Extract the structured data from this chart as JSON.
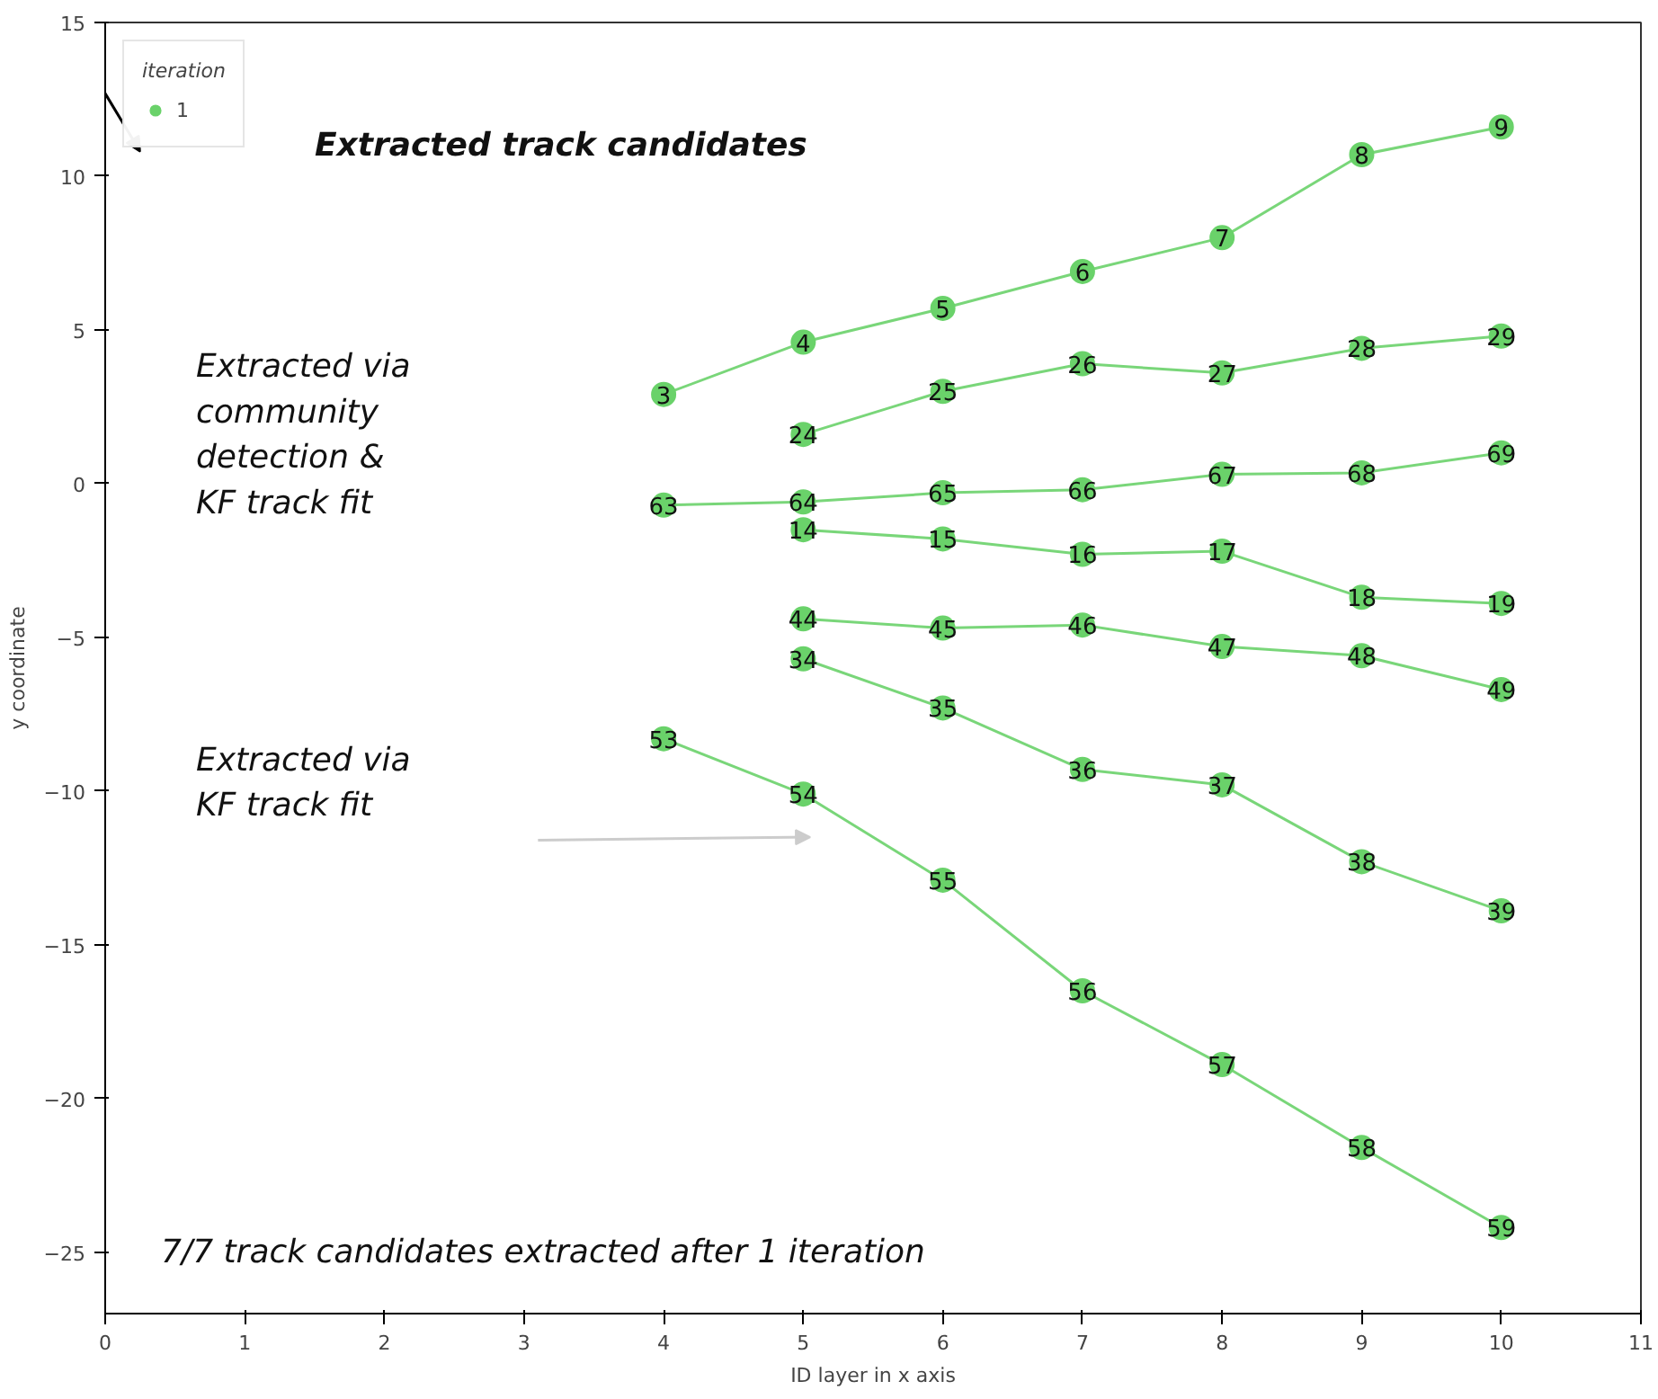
{
  "chart_data": {
    "type": "line",
    "xlabel": "ID layer in x axis",
    "ylabel": "y coordinate",
    "legend_title": "iteration",
    "legend": "top left",
    "marker": "circle",
    "line_style": "solid",
    "grid": false,
    "xlim": [
      0,
      11
    ],
    "xticks": [
      0,
      1,
      2,
      3,
      4,
      5,
      6,
      7,
      8,
      9,
      10,
      11
    ],
    "ylim": [
      -27,
      15
    ],
    "yticks": [
      -25,
      -20,
      -15,
      -10,
      -5,
      0,
      5,
      10,
      15
    ],
    "series": [
      {
        "name": "1",
        "color": "#6ad26a",
        "x": [
          4,
          5,
          6,
          7,
          8,
          9,
          10,
          null,
          5,
          6,
          7,
          8,
          9,
          10,
          null,
          4,
          5,
          6,
          7,
          8,
          9,
          10,
          null,
          5,
          6,
          7,
          8,
          9,
          10,
          null,
          5,
          6,
          7,
          8,
          9,
          10,
          null,
          5,
          6,
          7,
          8,
          9,
          10,
          null,
          4,
          5,
          6,
          7,
          8,
          9,
          10
        ],
        "values": [
          2.9,
          4.6,
          5.7,
          6.9,
          8.0,
          10.7,
          11.6,
          null,
          1.6,
          3.0,
          3.9,
          3.6,
          4.4,
          4.8,
          null,
          -0.7,
          -0.6,
          -0.3,
          -0.2,
          0.3,
          0.35,
          1.0,
          null,
          -1.5,
          -1.8,
          -2.3,
          -2.2,
          -3.7,
          -3.9,
          null,
          -4.4,
          -4.7,
          -4.6,
          -5.3,
          -5.6,
          -6.7,
          null,
          -5.7,
          -7.3,
          -9.3,
          -9.8,
          -12.3,
          -13.9,
          null,
          -8.3,
          -10.1,
          -12.9,
          -16.5,
          -18.9,
          -21.6,
          -24.2
        ]
      }
    ],
    "annotations": [
      "Extracted track candidates",
      "Extracted via\ncommunity\ndetection &\nKF track fit",
      "Extracted via\nKF track fit",
      "7/7 track candidates extracted after 1 iteration",
      {
        "text": "3",
        "x": 4,
        "y": 2.9
      },
      {
        "text": "4",
        "x": 5,
        "y": 4.6
      },
      {
        "text": "5",
        "x": 6,
        "y": 5.7
      },
      {
        "text": "6",
        "x": 7,
        "y": 6.9
      },
      {
        "text": "7",
        "x": 8,
        "y": 8.0
      },
      {
        "text": "8",
        "x": 9,
        "y": 10.7
      },
      {
        "text": "9",
        "x": 10,
        "y": 11.6
      },
      {
        "text": "24",
        "x": 5,
        "y": 1.6
      },
      {
        "text": "25",
        "x": 6,
        "y": 3.0
      },
      {
        "text": "26",
        "x": 7,
        "y": 3.9
      },
      {
        "text": "27",
        "x": 8,
        "y": 3.6
      },
      {
        "text": "28",
        "x": 9,
        "y": 4.4
      },
      {
        "text": "29",
        "x": 10,
        "y": 4.8
      },
      {
        "text": "63",
        "x": 4,
        "y": -0.7
      },
      {
        "text": "64",
        "x": 5,
        "y": -0.6
      },
      {
        "text": "65",
        "x": 6,
        "y": -0.3
      },
      {
        "text": "66",
        "x": 7,
        "y": -0.2
      },
      {
        "text": "67",
        "x": 8,
        "y": 0.3
      },
      {
        "text": "68",
        "x": 9,
        "y": 0.35
      },
      {
        "text": "69",
        "x": 10,
        "y": 1.0
      },
      {
        "text": "14",
        "x": 5,
        "y": -1.5
      },
      {
        "text": "15",
        "x": 6,
        "y": -1.8
      },
      {
        "text": "16",
        "x": 7,
        "y": -2.3
      },
      {
        "text": "17",
        "x": 8,
        "y": -2.2
      },
      {
        "text": "18",
        "x": 9,
        "y": -3.7
      },
      {
        "text": "19",
        "x": 10,
        "y": -3.9
      },
      {
        "text": "44",
        "x": 5,
        "y": -4.4
      },
      {
        "text": "45",
        "x": 6,
        "y": -4.7
      },
      {
        "text": "46",
        "x": 7,
        "y": -4.6
      },
      {
        "text": "47",
        "x": 8,
        "y": -5.3
      },
      {
        "text": "48",
        "x": 9,
        "y": -5.6
      },
      {
        "text": "49",
        "x": 10,
        "y": -6.7
      },
      {
        "text": "34",
        "x": 5,
        "y": -5.7
      },
      {
        "text": "35",
        "x": 6,
        "y": -7.3
      },
      {
        "text": "36",
        "x": 7,
        "y": -9.3
      },
      {
        "text": "37",
        "x": 8,
        "y": -9.8
      },
      {
        "text": "38",
        "x": 9,
        "y": -12.3
      },
      {
        "text": "39",
        "x": 10,
        "y": -13.9
      },
      {
        "text": "53",
        "x": 4,
        "y": -8.3
      },
      {
        "text": "54",
        "x": 5,
        "y": -10.1
      },
      {
        "text": "55",
        "x": 6,
        "y": -12.9
      },
      {
        "text": "56",
        "x": 7,
        "y": -16.5
      },
      {
        "text": "57",
        "x": 8,
        "y": -18.9
      },
      {
        "text": "58",
        "x": 9,
        "y": -21.6
      },
      {
        "text": "59",
        "x": 10,
        "y": -24.2
      }
    ]
  }
}
